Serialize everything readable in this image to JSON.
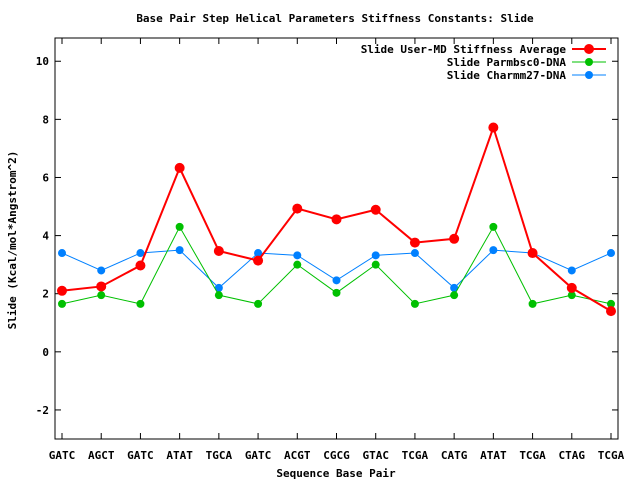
{
  "chart_data": {
    "type": "line",
    "title": "Base Pair Step Helical Parameters Stiffness Constants: Slide",
    "xlabel": "Sequence Base Pair",
    "ylabel": "Slide (Kcal/mol*Angstrom^2)",
    "categories": [
      "GATC",
      "AGCT",
      "GATC",
      "ATAT",
      "TGCA",
      "GATC",
      "ACGT",
      "CGCG",
      "GTAC",
      "TCGA",
      "CATG",
      "ATAT",
      "TCGA",
      "CTAG",
      "TCGA"
    ],
    "ylim": [
      -3,
      10.8
    ],
    "yticks": [
      -2,
      0,
      2,
      4,
      6,
      8,
      10
    ],
    "grid": false,
    "legend_position": "top-right",
    "series": [
      {
        "name": "Slide User-MD Stiffness Average",
        "color": "#ff0000",
        "values": [
          2.1,
          2.25,
          2.97,
          6.33,
          3.47,
          3.14,
          4.93,
          4.56,
          4.89,
          3.76,
          3.89,
          7.72,
          3.4,
          2.2,
          1.4
        ]
      },
      {
        "name": "Slide Parmbsc0-DNA",
        "color": "#00c000",
        "values": [
          1.65,
          1.95,
          1.65,
          4.3,
          1.95,
          1.65,
          3.0,
          2.03,
          3.0,
          1.65,
          1.95,
          4.3,
          1.65,
          1.95,
          1.65
        ]
      },
      {
        "name": "Slide Charmm27-DNA",
        "color": "#0080ff",
        "values": [
          3.4,
          2.8,
          3.4,
          3.5,
          2.2,
          3.4,
          3.32,
          2.46,
          3.32,
          3.4,
          2.2,
          3.5,
          3.4,
          2.8,
          3.4
        ]
      }
    ]
  }
}
